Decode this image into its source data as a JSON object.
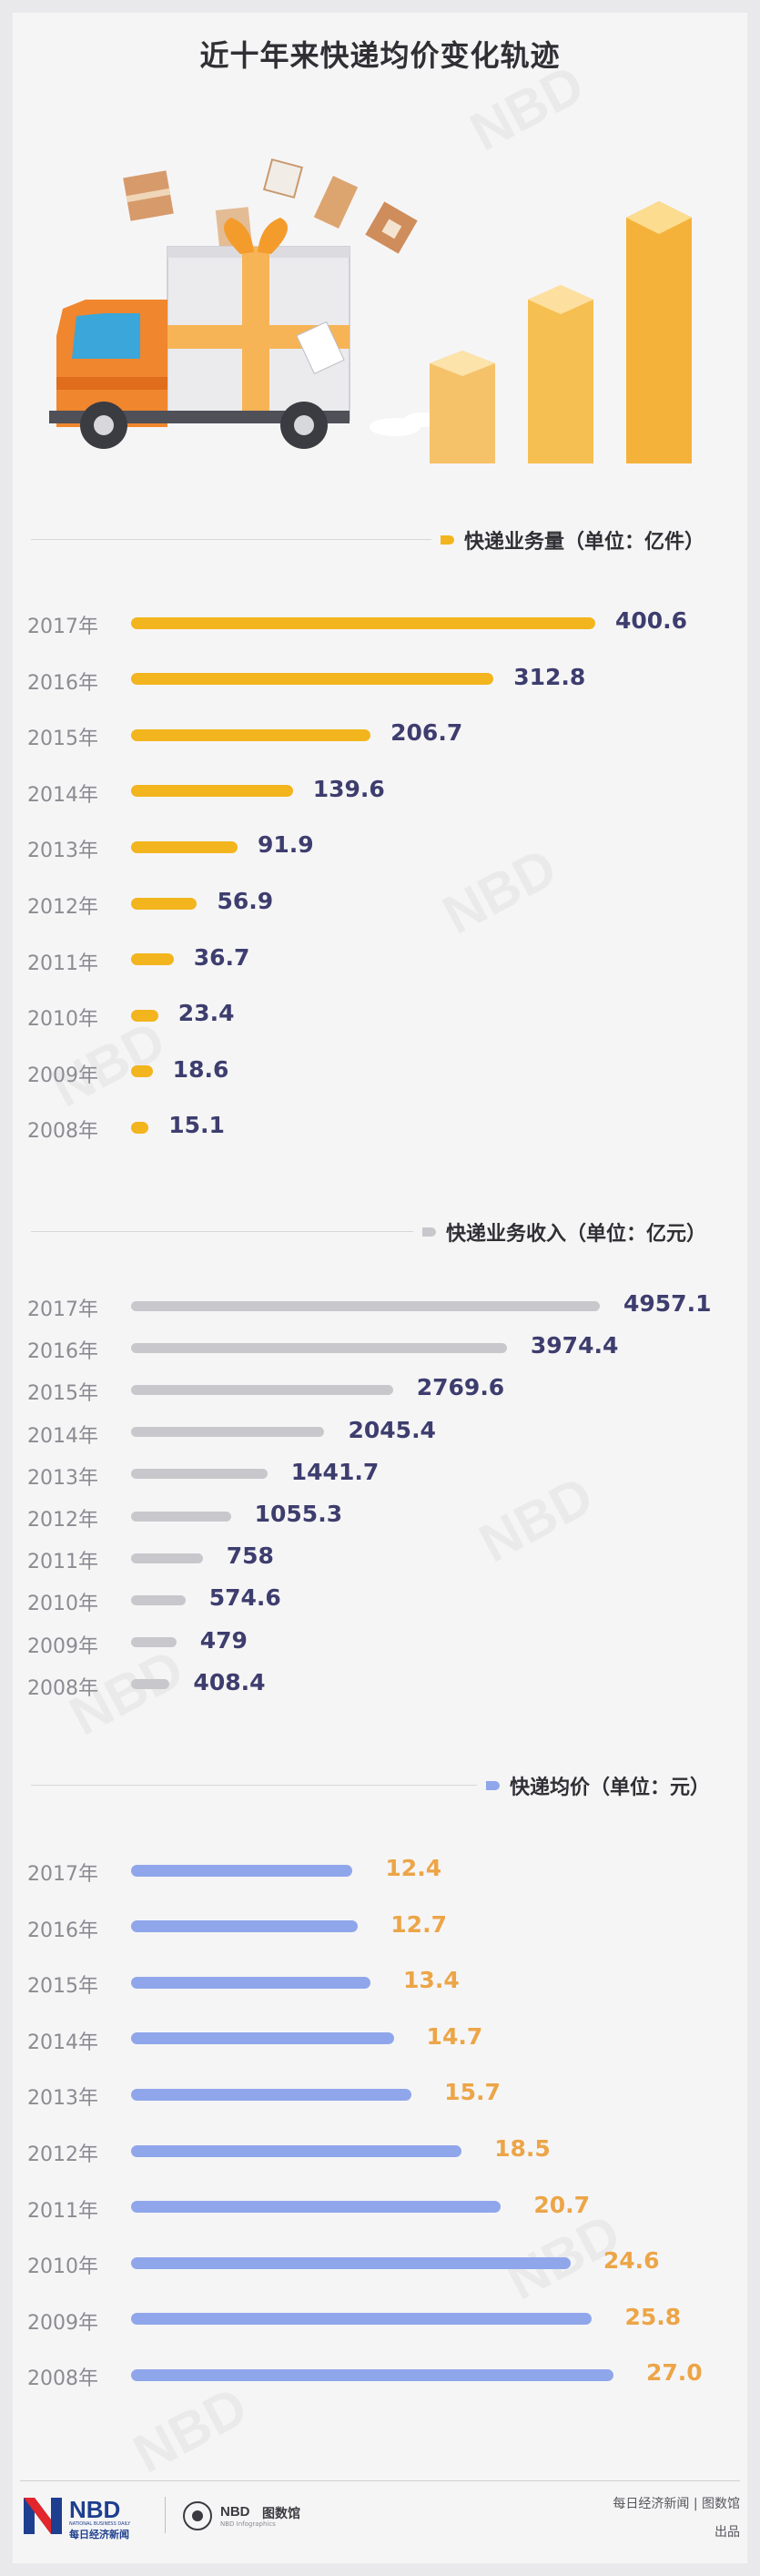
{
  "title": "近十年来快递均价变化轨迹",
  "chart_data": [
    {
      "type": "bar",
      "orientation": "horizontal",
      "title": "快递业务量（单位：亿件）",
      "categories": [
        "2017年",
        "2016年",
        "2015年",
        "2014年",
        "2013年",
        "2012年",
        "2011年",
        "2010年",
        "2009年",
        "2008年"
      ],
      "values": [
        400.6,
        312.8,
        206.7,
        139.6,
        91.9,
        56.9,
        36.7,
        23.4,
        18.6,
        15.1
      ],
      "value_labels": [
        "400.6",
        "312.8",
        "206.7",
        "139.6",
        "91.9",
        "56.9",
        "36.7",
        "23.4",
        "18.6",
        "15.1"
      ],
      "bar_color": "#f2b51e",
      "label_color": "#3d3d6e"
    },
    {
      "type": "bar",
      "orientation": "horizontal",
      "title": "快递业务收入（单位：亿元）",
      "categories": [
        "2017年",
        "2016年",
        "2015年",
        "2014年",
        "2013年",
        "2012年",
        "2011年",
        "2010年",
        "2009年",
        "2008年"
      ],
      "values": [
        4957.1,
        3974.4,
        2769.6,
        2045.4,
        1441.7,
        1055.3,
        758,
        574.6,
        479,
        408.4
      ],
      "value_labels": [
        "4957.1",
        "3974.4",
        "2769.6",
        "2045.4",
        "1441.7",
        "1055.3",
        "758",
        "574.6",
        "479",
        "408.4"
      ],
      "bar_color": "#c8c8cc",
      "label_color": "#3d3d6e"
    },
    {
      "type": "bar",
      "orientation": "horizontal",
      "title": "快递均价（单位：元）",
      "categories": [
        "2017年",
        "2016年",
        "2015年",
        "2014年",
        "2013年",
        "2012年",
        "2011年",
        "2010年",
        "2009年",
        "2008年"
      ],
      "values": [
        12.4,
        12.7,
        13.4,
        14.7,
        15.7,
        18.5,
        20.7,
        24.6,
        25.8,
        27.0
      ],
      "value_labels": [
        "12.4",
        "12.7",
        "13.4",
        "14.7",
        "15.7",
        "18.5",
        "20.7",
        "24.6",
        "25.8",
        "27.0"
      ],
      "bar_color": "#8fa6ea",
      "label_color": "#eca547"
    }
  ],
  "footer": {
    "logo_text": "NBD",
    "logo_sub_en": "NATIONAL BUSINESS DAILY",
    "logo_sub_cn": "每日经济新闻",
    "brand2": "NBD",
    "brand2_cn": "图数馆",
    "brand2_en": "NBD Infographics",
    "credit": "每日经济新闻 | 图数馆",
    "credit2": "出品"
  },
  "watermark": "NBD",
  "colors": {
    "accent_yellow": "#f2b51e",
    "accent_gray": "#c8c8cc",
    "accent_blue": "#8fa6ea"
  }
}
